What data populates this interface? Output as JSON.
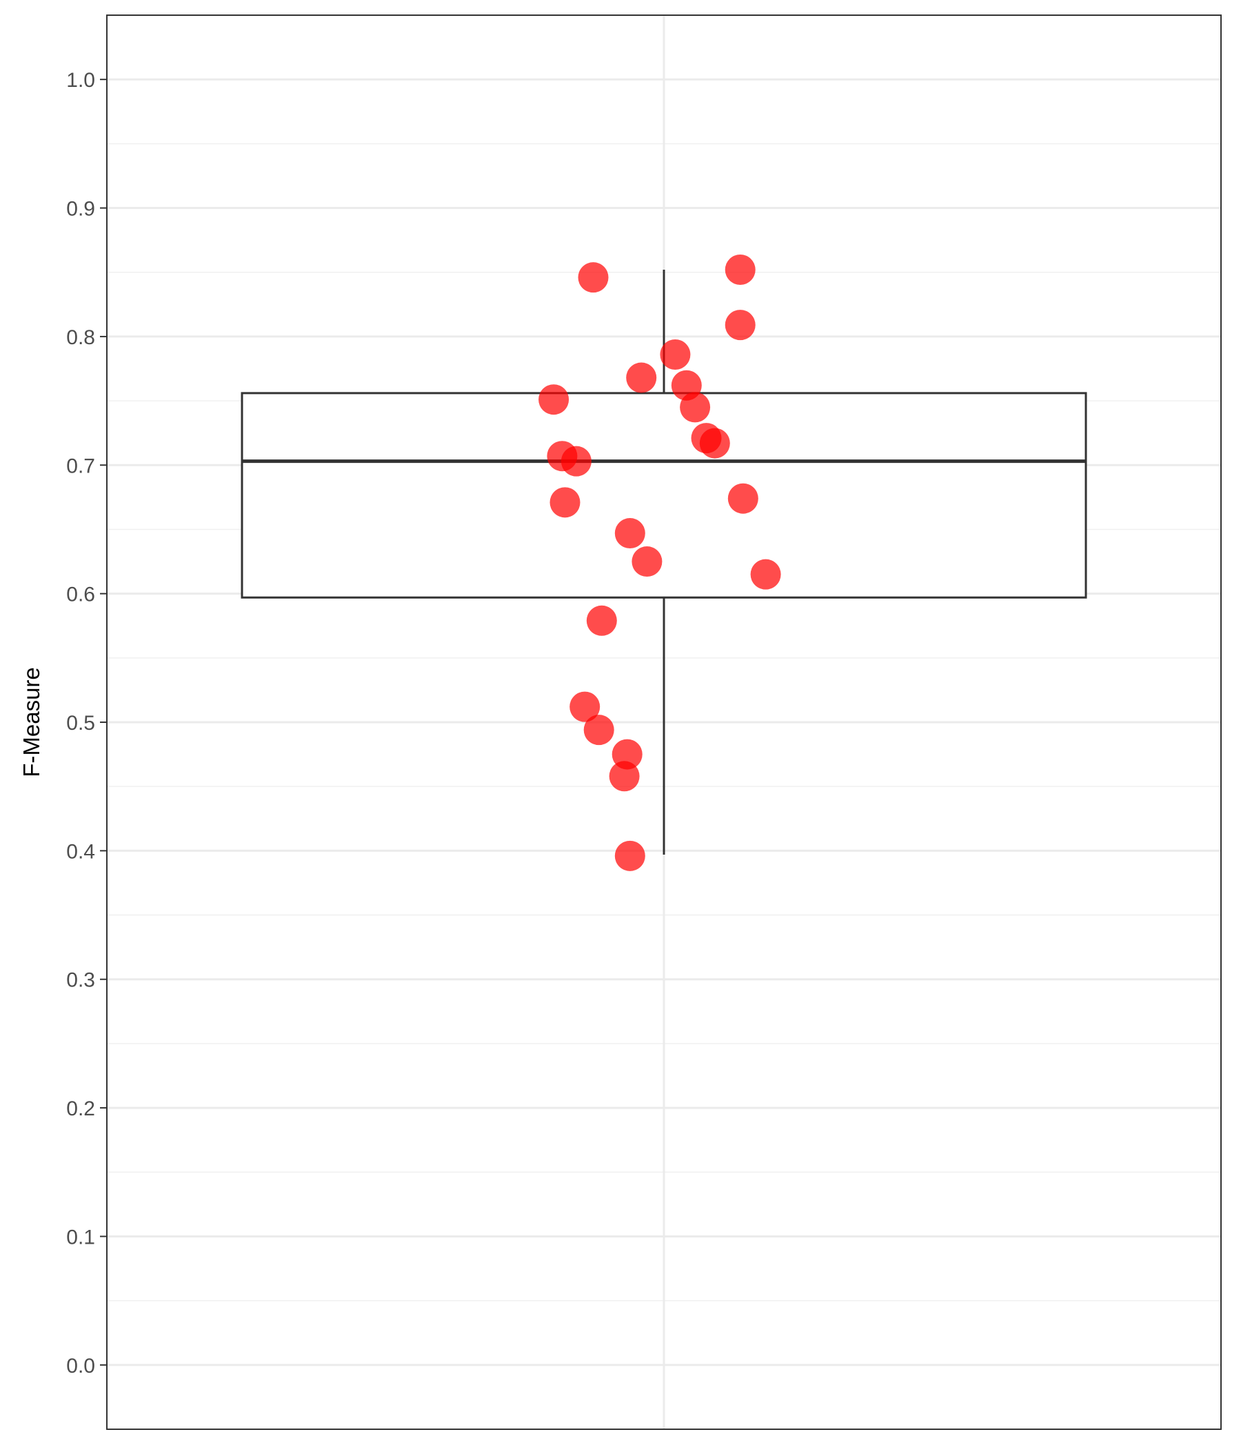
{
  "chart_data": {
    "type": "box",
    "title": "",
    "xlabel": "",
    "ylabel": "F-Measure",
    "ylim": [
      -0.05,
      1.05
    ],
    "yticks": [
      0.0,
      0.1,
      0.2,
      0.3,
      0.4,
      0.5,
      0.6,
      0.7,
      0.8,
      0.9,
      1.0
    ],
    "ytick_labels": [
      "0.0",
      "0.1",
      "0.2",
      "0.3",
      "0.4",
      "0.5",
      "0.6",
      "0.7",
      "0.8",
      "0.9",
      "1.0"
    ],
    "grid": true,
    "legend": "none",
    "box": {
      "whisker_low": 0.397,
      "q1": 0.597,
      "median": 0.703,
      "q3": 0.756,
      "whisker_high": 0.852
    },
    "points": {
      "color": "#ff0000",
      "opacity": 0.7,
      "y": [
        0.852,
        0.846,
        0.809,
        0.786,
        0.768,
        0.762,
        0.751,
        0.745,
        0.721,
        0.717,
        0.707,
        0.703,
        0.674,
        0.671,
        0.647,
        0.625,
        0.615,
        0.579,
        0.512,
        0.494,
        0.475,
        0.458,
        0.396
      ],
      "jitter": [
        0.27,
        -0.25,
        0.27,
        0.04,
        -0.08,
        0.08,
        -0.39,
        0.11,
        0.15,
        0.18,
        -0.36,
        -0.31,
        0.28,
        -0.35,
        -0.12,
        -0.06,
        0.36,
        -0.22,
        -0.28,
        -0.23,
        -0.13,
        -0.14,
        -0.12
      ]
    }
  }
}
